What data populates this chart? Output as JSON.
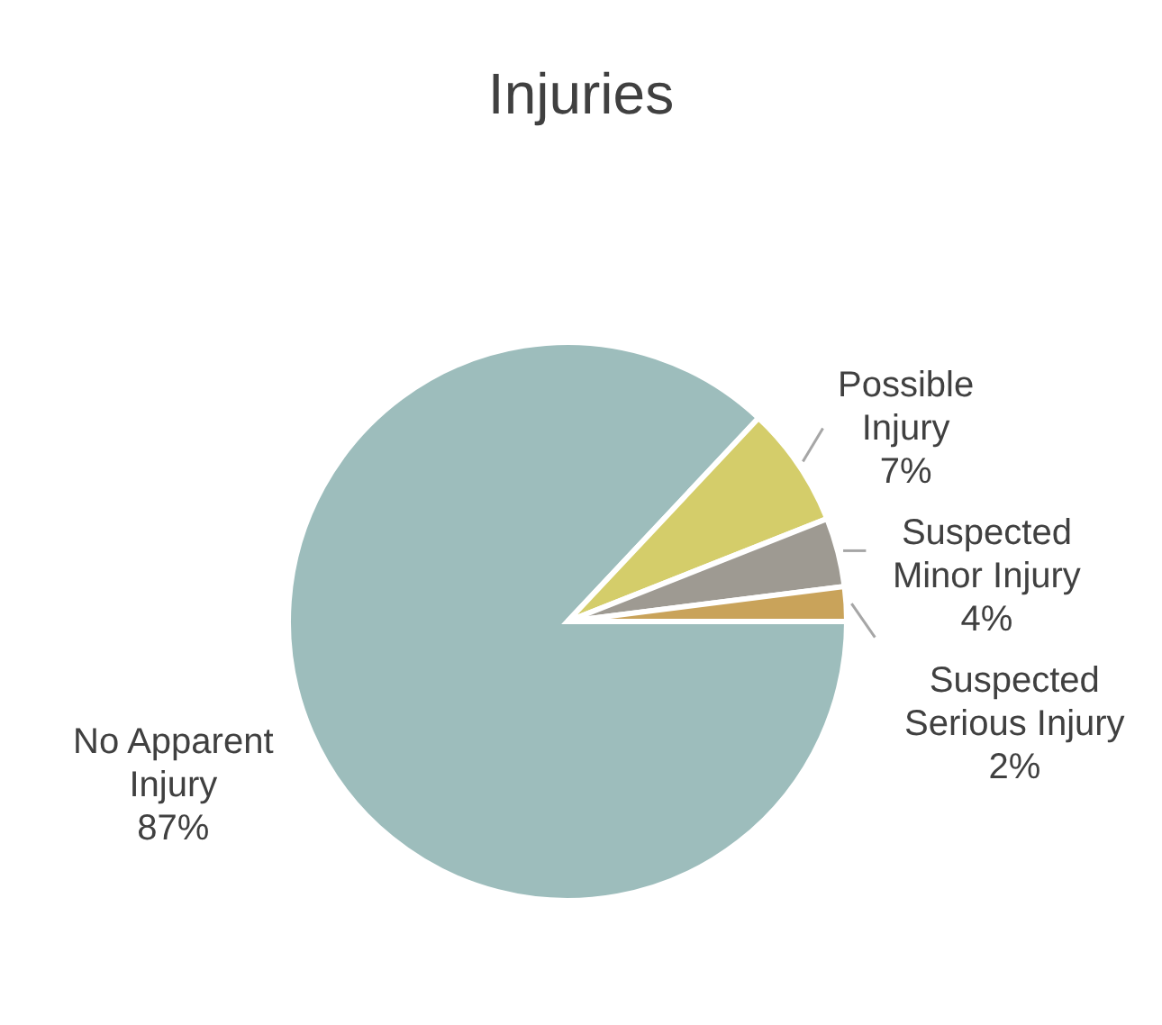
{
  "chart_data": {
    "type": "pie",
    "title": "Injuries",
    "categories": [
      "No Apparent Injury",
      "Possible Injury",
      "Suspected Minor Injury",
      "Suspected Serious Injury"
    ],
    "values": [
      87,
      7,
      4,
      2
    ],
    "colors": [
      "#9dbdbc",
      "#d4cd6a",
      "#9e9a92",
      "#c9a35a"
    ],
    "value_labels": [
      "87%",
      "7%",
      "4%",
      "2%"
    ],
    "legend": false
  }
}
